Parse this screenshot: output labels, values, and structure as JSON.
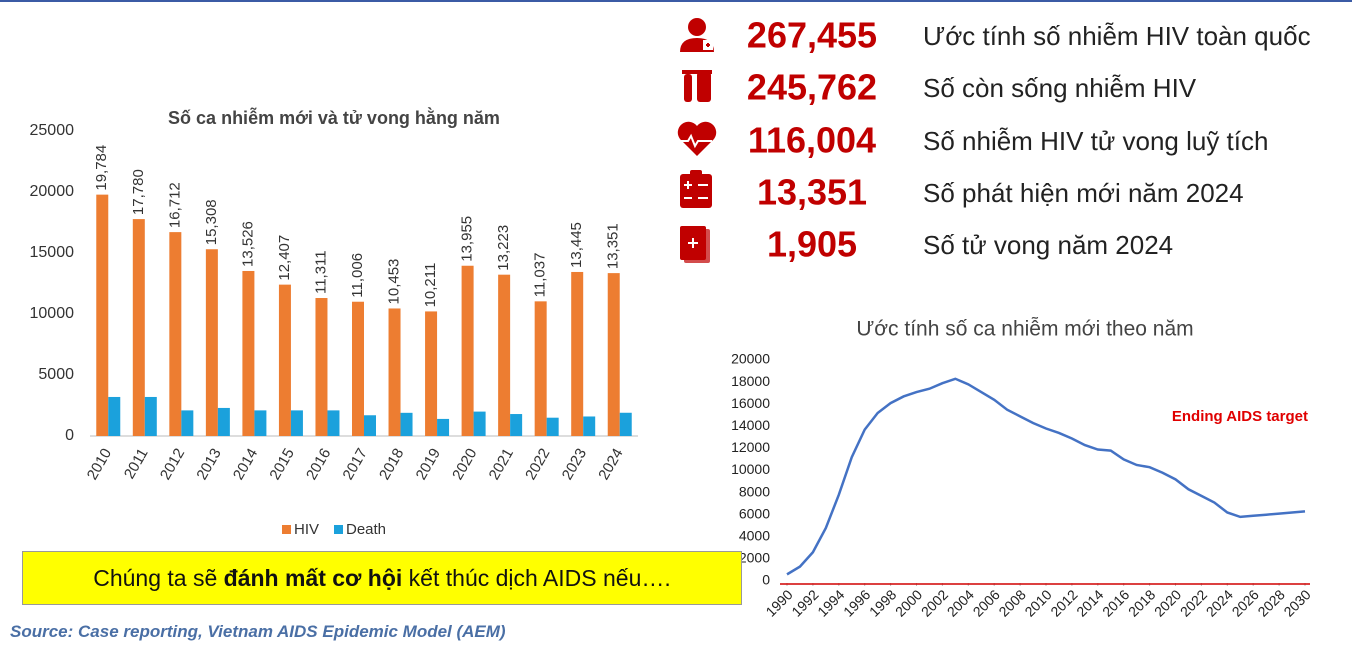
{
  "chart_data": [
    {
      "type": "bar",
      "title": "Số ca nhiễm mới và tử vong hằng năm",
      "categories": [
        "2010",
        "2011",
        "2012",
        "2013",
        "2014",
        "2015",
        "2016",
        "2017",
        "2018",
        "2019",
        "2020",
        "2021",
        "2022",
        "2023",
        "2024"
      ],
      "series": [
        {
          "name": "HIV",
          "color": "#ed7d31",
          "values": [
            19784,
            17780,
            16712,
            15308,
            13526,
            12407,
            11311,
            11006,
            10453,
            10211,
            13955,
            13223,
            11037,
            13445,
            13351
          ],
          "value_labels": [
            "19,784",
            "17,780",
            "16,712",
            "15,308",
            "13,526",
            "12,407",
            "11,311",
            "11,006",
            "10,453",
            "10,211",
            "13,955",
            "13,223",
            "11,037",
            "13,445",
            "13,351"
          ]
        },
        {
          "name": "Death",
          "color": "#1ba1dc",
          "values": [
            3200,
            3200,
            2100,
            2300,
            2100,
            2100,
            2100,
            1700,
            1900,
            1400,
            2000,
            1800,
            1500,
            1600,
            1905
          ]
        }
      ],
      "ylim": [
        0,
        25000
      ],
      "yticks": [
        0,
        5000,
        10000,
        15000,
        20000,
        25000
      ],
      "legend": "bottom"
    },
    {
      "type": "line",
      "title": "Ước tính số ca nhiễm mới theo năm",
      "x": [
        1990,
        1991,
        1992,
        1993,
        1994,
        1995,
        1996,
        1997,
        1998,
        1999,
        2000,
        2001,
        2002,
        2003,
        2004,
        2005,
        2006,
        2007,
        2008,
        2009,
        2010,
        2011,
        2012,
        2013,
        2014,
        2015,
        2016,
        2017,
        2018,
        2019,
        2020,
        2021,
        2022,
        2023,
        2024,
        2025,
        2026,
        2027,
        2028,
        2029,
        2030
      ],
      "values": [
        600,
        1300,
        2600,
        4800,
        7800,
        11200,
        13700,
        15200,
        16100,
        16700,
        17100,
        17400,
        17900,
        18300,
        17800,
        17100,
        16400,
        15500,
        14900,
        14300,
        13800,
        13400,
        12900,
        12300,
        11900,
        11800,
        11000,
        10500,
        10300,
        9800,
        9200,
        8300,
        7700,
        7100,
        6200,
        5800,
        5900,
        6000,
        6100,
        6200,
        6300
      ],
      "color": "#4472c4",
      "xlim": [
        1990,
        2030
      ],
      "xticks": [
        1990,
        1992,
        1994,
        1996,
        1998,
        2000,
        2002,
        2004,
        2006,
        2008,
        2010,
        2012,
        2014,
        2016,
        2018,
        2020,
        2022,
        2024,
        2026,
        2028,
        2030
      ],
      "ylim": [
        0,
        20000
      ],
      "yticks": [
        0,
        2000,
        4000,
        6000,
        8000,
        10000,
        12000,
        14000,
        16000,
        18000,
        20000
      ],
      "annotation": "Ending AIDS target"
    }
  ],
  "stats": [
    {
      "value": "267,455",
      "label": "Ước tính số nhiễm HIV toàn quốc"
    },
    {
      "value": "245,762",
      "label": "Số còn sống nhiễm HIV"
    },
    {
      "value": "116,004",
      "label": "Số nhiễm HIV tử vong luỹ tích"
    },
    {
      "value": "13,351",
      "label": "Số phát hiện mới năm 2024"
    },
    {
      "value": "1,905",
      "label": "Số tử vong năm 2024"
    }
  ],
  "banner": {
    "before": "Chúng ta sẽ ",
    "bold": "đánh mất cơ hội",
    "after": " kết thúc dịch AIDS nếu…."
  },
  "source": "Source: Case reporting, Vietnam AIDS Epidemic Model (AEM)"
}
